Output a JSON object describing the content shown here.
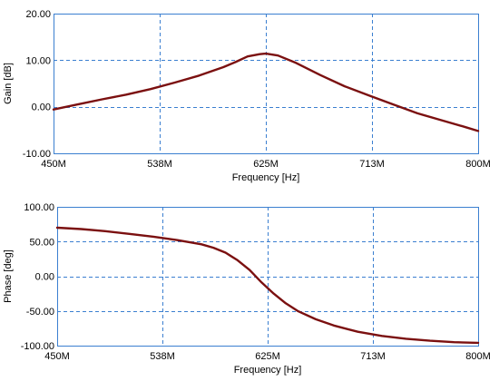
{
  "colors": {
    "curve": "#7b1010",
    "grid": "#3b7fd0",
    "background": "#ffffff"
  },
  "chart_data": [
    {
      "type": "line",
      "title": "",
      "xlabel": "Frequency [Hz]",
      "ylabel": "Gain [dB]",
      "xlim": [
        450,
        800
      ],
      "ylim": [
        -10,
        20
      ],
      "x_ticks": [
        450,
        537.5,
        625,
        712.5,
        800
      ],
      "x_tick_labels": [
        "450M",
        "538M",
        "625M",
        "713M",
        "800M"
      ],
      "y_ticks": [
        -10,
        0,
        10,
        20
      ],
      "y_tick_labels": [
        "-10.00",
        "0.00",
        "10.00",
        "20.00"
      ],
      "grid": true,
      "series": [
        {
          "x": [
            450,
            470,
            490,
            510,
            530,
            550,
            570,
            590,
            600,
            610,
            620,
            625,
            635,
            650,
            670,
            690,
            710,
            730,
            750,
            770,
            790,
            800
          ],
          "y": [
            -0.6,
            0.5,
            1.6,
            2.6,
            3.8,
            5.2,
            6.7,
            8.5,
            9.6,
            10.8,
            11.3,
            11.4,
            11.0,
            9.4,
            6.8,
            4.4,
            2.4,
            0.5,
            -1.4,
            -2.9,
            -4.4,
            -5.2
          ]
        }
      ]
    },
    {
      "type": "line",
      "title": "",
      "xlabel": "Frequency [Hz]",
      "ylabel": "Phase [deg]",
      "xlim": [
        450,
        800
      ],
      "ylim": [
        -100,
        100
      ],
      "x_ticks": [
        450,
        537.5,
        625,
        712.5,
        800
      ],
      "x_tick_labels": [
        "450M",
        "538M",
        "625M",
        "713M",
        "800M"
      ],
      "y_ticks": [
        -100,
        -50,
        0,
        50,
        100
      ],
      "y_tick_labels": [
        "-100.00",
        "-50.00",
        "0.00",
        "50.00",
        "100.00"
      ],
      "grid": true,
      "series": [
        {
          "x": [
            450,
            470,
            490,
            510,
            530,
            550,
            570,
            580,
            590,
            600,
            610,
            620,
            625,
            630,
            640,
            650,
            665,
            680,
            700,
            720,
            740,
            760,
            780,
            800
          ],
          "y": [
            70,
            68,
            65,
            61,
            57,
            52,
            46,
            41,
            34,
            23,
            9,
            -9,
            -17,
            -25,
            -39,
            -50,
            -62,
            -71,
            -80,
            -86,
            -90,
            -93,
            -95,
            -96
          ]
        }
      ]
    }
  ]
}
